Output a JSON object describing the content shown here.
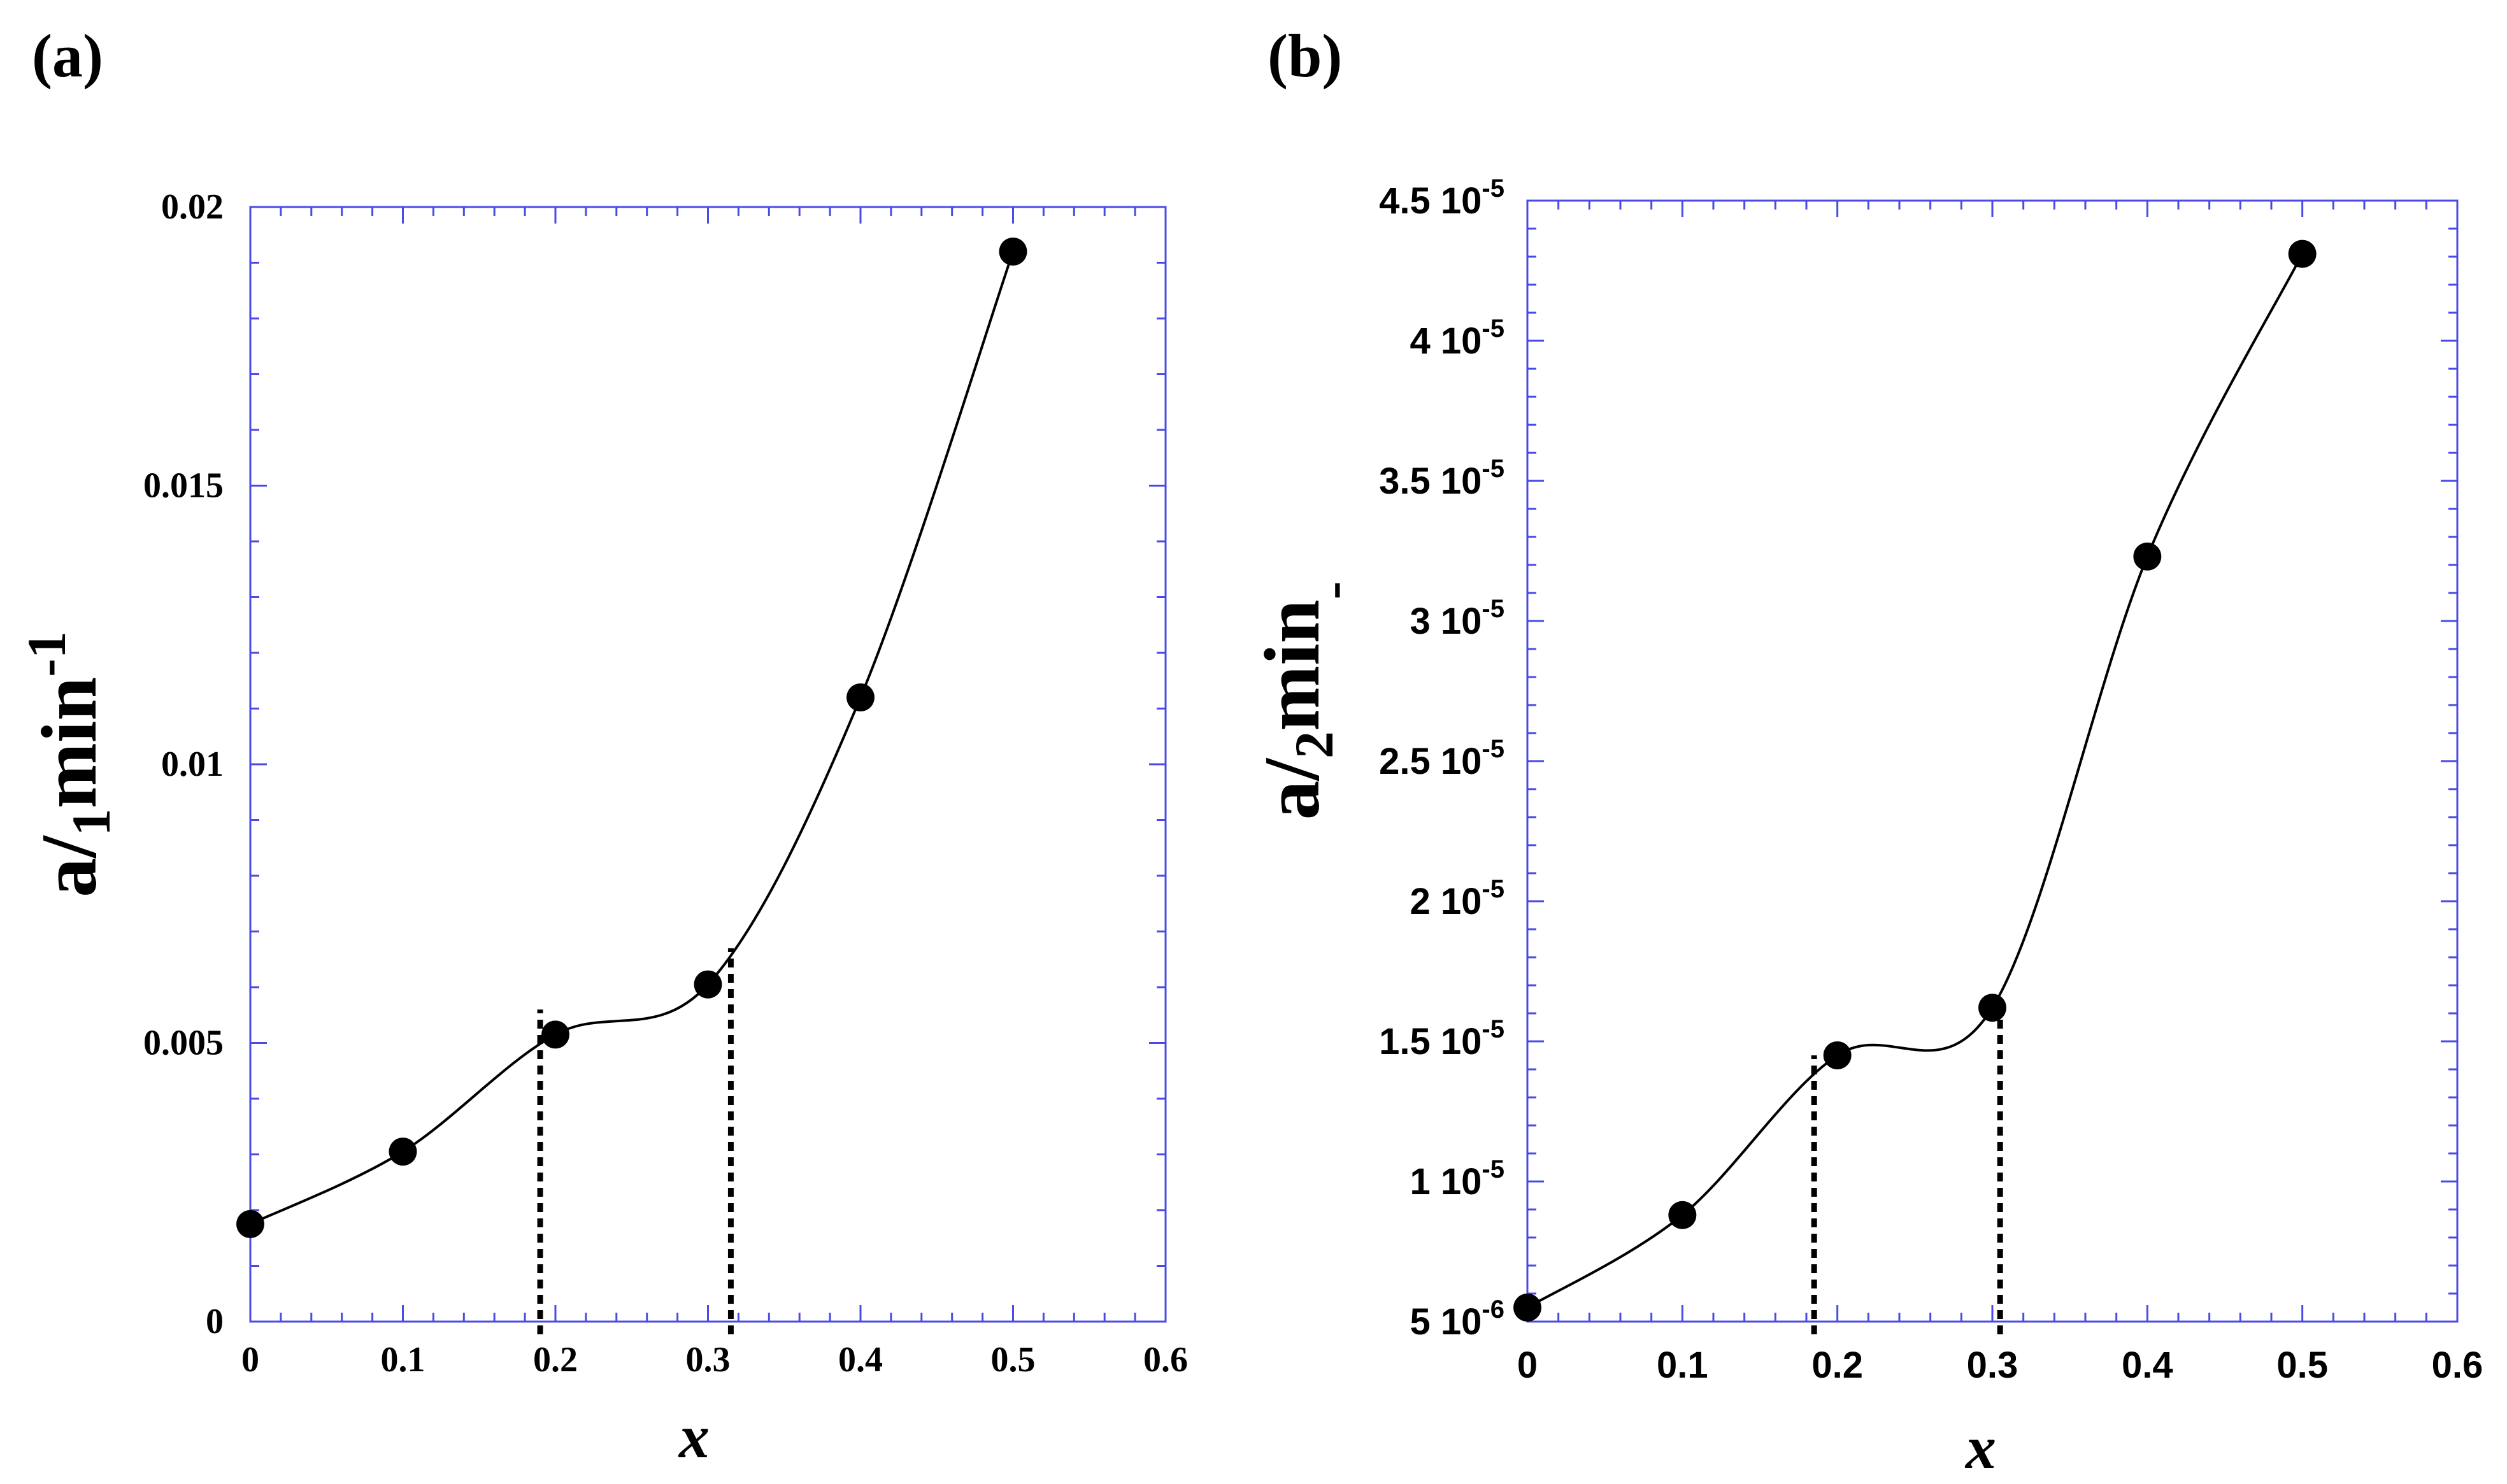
{
  "chart_data": [
    {
      "type": "scatter",
      "panel_label": "(a)",
      "x": [
        0,
        0.1,
        0.2,
        0.3,
        0.4,
        0.5
      ],
      "values": [
        0.00175,
        0.00305,
        0.00515,
        0.00605,
        0.0112,
        0.0192
      ],
      "smooth_line": true,
      "xlabel": "x",
      "ylabel": {
        "base": "a/",
        "sub": "1",
        "unit": "min",
        "sup": "-1"
      },
      "xlim": [
        0,
        0.6
      ],
      "ylim": [
        0,
        0.02
      ],
      "x_ticks": [
        0,
        0.1,
        0.2,
        0.3,
        0.4,
        0.5,
        0.6
      ],
      "x_tick_labels": [
        "0",
        "0.1",
        "0.2",
        "0.3",
        "0.4",
        "0.5",
        "0.6"
      ],
      "y_ticks": [
        0,
        0.005,
        0.01,
        0.015,
        0.02
      ],
      "y_tick_labels": [
        "0",
        "0.005",
        "0.01",
        "0.015",
        "0.02"
      ],
      "dotted_markers": [
        {
          "x": 0.19,
          "y_top": 0.0056
        },
        {
          "x": 0.315,
          "y_top": 0.0067
        }
      ],
      "grid": false
    },
    {
      "type": "scatter",
      "panel_label": "(b)",
      "x": [
        0,
        0.1,
        0.2,
        0.3,
        0.4,
        0.5
      ],
      "values": [
        5.5e-06,
        8.8e-06,
        1.45e-05,
        1.62e-05,
        3.23e-05,
        4.31e-05
      ],
      "smooth_line": true,
      "xlabel": "x",
      "ylabel": {
        "base": "a/",
        "sub": "2",
        "unit": "min",
        "sup": "-"
      },
      "xlim": [
        0,
        0.6
      ],
      "ylim": [
        5e-06,
        4.5e-05
      ],
      "x_ticks": [
        0,
        0.1,
        0.2,
        0.3,
        0.4,
        0.5,
        0.6
      ],
      "x_tick_labels": [
        "0",
        "0.1",
        "0.2",
        "0.3",
        "0.4",
        "0.5",
        "0.6"
      ],
      "y_ticks": [
        5e-06,
        1e-05,
        1.5e-05,
        2e-05,
        2.5e-05,
        3e-05,
        3.5e-05,
        4e-05,
        4.5e-05
      ],
      "y_tick_labels": [
        {
          "mant": "5",
          "exp": "-6"
        },
        {
          "mant": "1",
          "exp": "-5"
        },
        {
          "mant": "1.5",
          "exp": "-5"
        },
        {
          "mant": "2",
          "exp": "-5"
        },
        {
          "mant": "2.5",
          "exp": "-5"
        },
        {
          "mant": "3",
          "exp": "-5"
        },
        {
          "mant": "3.5",
          "exp": "-5"
        },
        {
          "mant": "4",
          "exp": "-5"
        },
        {
          "mant": "4.5",
          "exp": "-5"
        }
      ],
      "dotted_markers": [
        {
          "x": 0.185,
          "y_top": 1.45e-05
        },
        {
          "x": 0.305,
          "y_top": 1.6e-05
        }
      ],
      "grid": false
    }
  ]
}
